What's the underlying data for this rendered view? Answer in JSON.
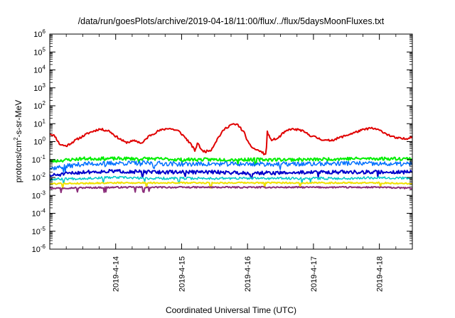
{
  "chart_data": {
    "type": "line",
    "title": "/data/run/goesPlots/archive/2019-04-18/11:00/flux/../flux/5daysMoonFluxes.txt",
    "xlabel": "Coordinated Universal Time (UTC)",
    "ylabel": "protons/cm2-s-sr-MeV",
    "ylabel_parts": [
      "protons/cm",
      "2",
      "-s-sr-MeV"
    ],
    "yscale": "log",
    "ylim": [
      1e-06,
      1000000.0
    ],
    "xlim_days": [
      13.0,
      18.5
    ],
    "y_ticks": [
      {
        "value": -6,
        "base": "10",
        "exp": "-6"
      },
      {
        "value": -5,
        "base": "10",
        "exp": "-5"
      },
      {
        "value": -4,
        "base": "10",
        "exp": "-4"
      },
      {
        "value": -3,
        "base": "10",
        "exp": "-3"
      },
      {
        "value": -2,
        "base": "10",
        "exp": "-2"
      },
      {
        "value": -1,
        "base": "10",
        "exp": "-1"
      },
      {
        "value": 0,
        "base": "10",
        "exp": "0"
      },
      {
        "value": 1,
        "base": "10",
        "exp": "1"
      },
      {
        "value": 2,
        "base": "10",
        "exp": "2"
      },
      {
        "value": 3,
        "base": "10",
        "exp": "3"
      },
      {
        "value": 4,
        "base": "10",
        "exp": "4"
      },
      {
        "value": 5,
        "base": "10",
        "exp": "5"
      },
      {
        "value": 6,
        "base": "10",
        "exp": "6"
      }
    ],
    "x_ticks": [
      {
        "day": 14,
        "label": "2019-4-14"
      },
      {
        "day": 15,
        "label": "2019-4-15"
      },
      {
        "day": 16,
        "label": "2019-4-16"
      },
      {
        "day": 17,
        "label": "2019-4-17"
      },
      {
        "day": 18,
        "label": "2019-4-18"
      }
    ],
    "grid": false,
    "legend": "none",
    "series": [
      {
        "color": "#e00000",
        "width": 2.0,
        "noise": 0.06,
        "seed": 11,
        "spikes": 0,
        "points": [
          [
            13.0,
            0.45
          ],
          [
            13.08,
            0.3
          ],
          [
            13.15,
            -0.15
          ],
          [
            13.25,
            -0.25
          ],
          [
            13.4,
            0.1
          ],
          [
            13.6,
            0.5
          ],
          [
            13.75,
            0.7
          ],
          [
            13.9,
            0.6
          ],
          [
            14.0,
            0.3
          ],
          [
            14.15,
            -0.05
          ],
          [
            14.3,
            0.05
          ],
          [
            14.4,
            -0.1
          ],
          [
            14.5,
            0.3
          ],
          [
            14.65,
            0.6
          ],
          [
            14.8,
            0.75
          ],
          [
            14.95,
            0.6
          ],
          [
            15.05,
            0.25
          ],
          [
            15.15,
            -0.2
          ],
          [
            15.2,
            -0.5
          ],
          [
            15.25,
            -0.05
          ],
          [
            15.3,
            -0.5
          ],
          [
            15.37,
            -0.55
          ],
          [
            15.45,
            -0.45
          ],
          [
            15.55,
            0.2
          ],
          [
            15.65,
            0.7
          ],
          [
            15.75,
            0.95
          ],
          [
            15.85,
            0.95
          ],
          [
            15.95,
            0.5
          ],
          [
            16.02,
            -0.15
          ],
          [
            16.1,
            -0.4
          ],
          [
            16.2,
            -0.55
          ],
          [
            16.28,
            -0.75
          ],
          [
            16.3,
            0.55
          ],
          [
            16.35,
            0.1
          ],
          [
            16.45,
            0.15
          ],
          [
            16.55,
            0.5
          ],
          [
            16.65,
            0.7
          ],
          [
            16.8,
            0.65
          ],
          [
            16.95,
            0.35
          ],
          [
            17.1,
            0.15
          ],
          [
            17.2,
            0.05
          ],
          [
            17.3,
            0.1
          ],
          [
            17.5,
            0.35
          ],
          [
            17.7,
            0.6
          ],
          [
            17.85,
            0.75
          ],
          [
            17.95,
            0.7
          ],
          [
            18.05,
            0.55
          ],
          [
            18.15,
            0.35
          ],
          [
            18.25,
            0.2
          ],
          [
            18.4,
            0.15
          ],
          [
            18.5,
            0.3
          ]
        ]
      },
      {
        "color": "#00ee00",
        "width": 2.0,
        "noise": 0.09,
        "seed": 23,
        "spikes": 4,
        "points": [
          [
            13.0,
            -1.1
          ],
          [
            13.5,
            -0.95
          ],
          [
            14.0,
            -0.95
          ],
          [
            14.5,
            -0.95
          ],
          [
            15.0,
            -1.0
          ],
          [
            15.5,
            -1.0
          ],
          [
            16.0,
            -1.0
          ],
          [
            16.5,
            -1.0
          ],
          [
            17.0,
            -1.0
          ],
          [
            17.5,
            -0.95
          ],
          [
            18.0,
            -0.95
          ],
          [
            18.5,
            -0.95
          ]
        ]
      },
      {
        "color": "#0070ff",
        "width": 1.5,
        "noise": 0.13,
        "seed": 37,
        "spikes": 6,
        "points": [
          [
            13.0,
            -1.5
          ],
          [
            13.5,
            -1.25
          ],
          [
            14.0,
            -1.2
          ],
          [
            14.5,
            -1.2
          ],
          [
            15.0,
            -1.25
          ],
          [
            15.5,
            -1.25
          ],
          [
            16.0,
            -1.25
          ],
          [
            16.5,
            -1.25
          ],
          [
            17.0,
            -1.25
          ],
          [
            17.5,
            -1.2
          ],
          [
            18.0,
            -1.25
          ],
          [
            18.5,
            -1.25
          ]
        ]
      },
      {
        "color": "#0000cc",
        "width": 2.0,
        "noise": 0.1,
        "seed": 51,
        "spikes": 5,
        "points": [
          [
            13.0,
            -1.9
          ],
          [
            13.5,
            -1.7
          ],
          [
            14.0,
            -1.65
          ],
          [
            14.5,
            -1.7
          ],
          [
            15.0,
            -1.7
          ],
          [
            15.5,
            -1.7
          ],
          [
            16.0,
            -1.75
          ],
          [
            16.5,
            -1.75
          ],
          [
            17.0,
            -1.7
          ],
          [
            17.5,
            -1.7
          ],
          [
            18.0,
            -1.7
          ],
          [
            18.5,
            -1.7
          ]
        ]
      },
      {
        "color": "#00c8c8",
        "width": 1.5,
        "noise": 0.07,
        "seed": 67,
        "spikes": 6,
        "points": [
          [
            13.0,
            -2.1
          ],
          [
            13.5,
            -2.05
          ],
          [
            14.0,
            -2.0
          ],
          [
            14.5,
            -2.05
          ],
          [
            15.0,
            -2.05
          ],
          [
            15.5,
            -2.05
          ],
          [
            16.0,
            -2.05
          ],
          [
            16.5,
            -2.05
          ],
          [
            17.0,
            -2.05
          ],
          [
            17.5,
            -2.05
          ],
          [
            18.0,
            -2.0
          ],
          [
            18.5,
            -2.05
          ]
        ]
      },
      {
        "color": "#f0e000",
        "width": 2.0,
        "noise": 0.04,
        "seed": 79,
        "spikes": 6,
        "points": [
          [
            13.0,
            -2.35
          ],
          [
            14.0,
            -2.3
          ],
          [
            15.0,
            -2.3
          ],
          [
            16.0,
            -2.3
          ],
          [
            17.0,
            -2.3
          ],
          [
            18.0,
            -2.3
          ],
          [
            18.5,
            -2.35
          ]
        ]
      },
      {
        "color": "#8b2d7a",
        "width": 2.0,
        "noise": 0.04,
        "seed": 97,
        "spikes": 7,
        "points": [
          [
            13.0,
            -2.6
          ],
          [
            14.0,
            -2.55
          ],
          [
            15.0,
            -2.55
          ],
          [
            16.0,
            -2.55
          ],
          [
            17.0,
            -2.55
          ],
          [
            18.0,
            -2.55
          ],
          [
            18.5,
            -2.6
          ]
        ]
      }
    ]
  }
}
